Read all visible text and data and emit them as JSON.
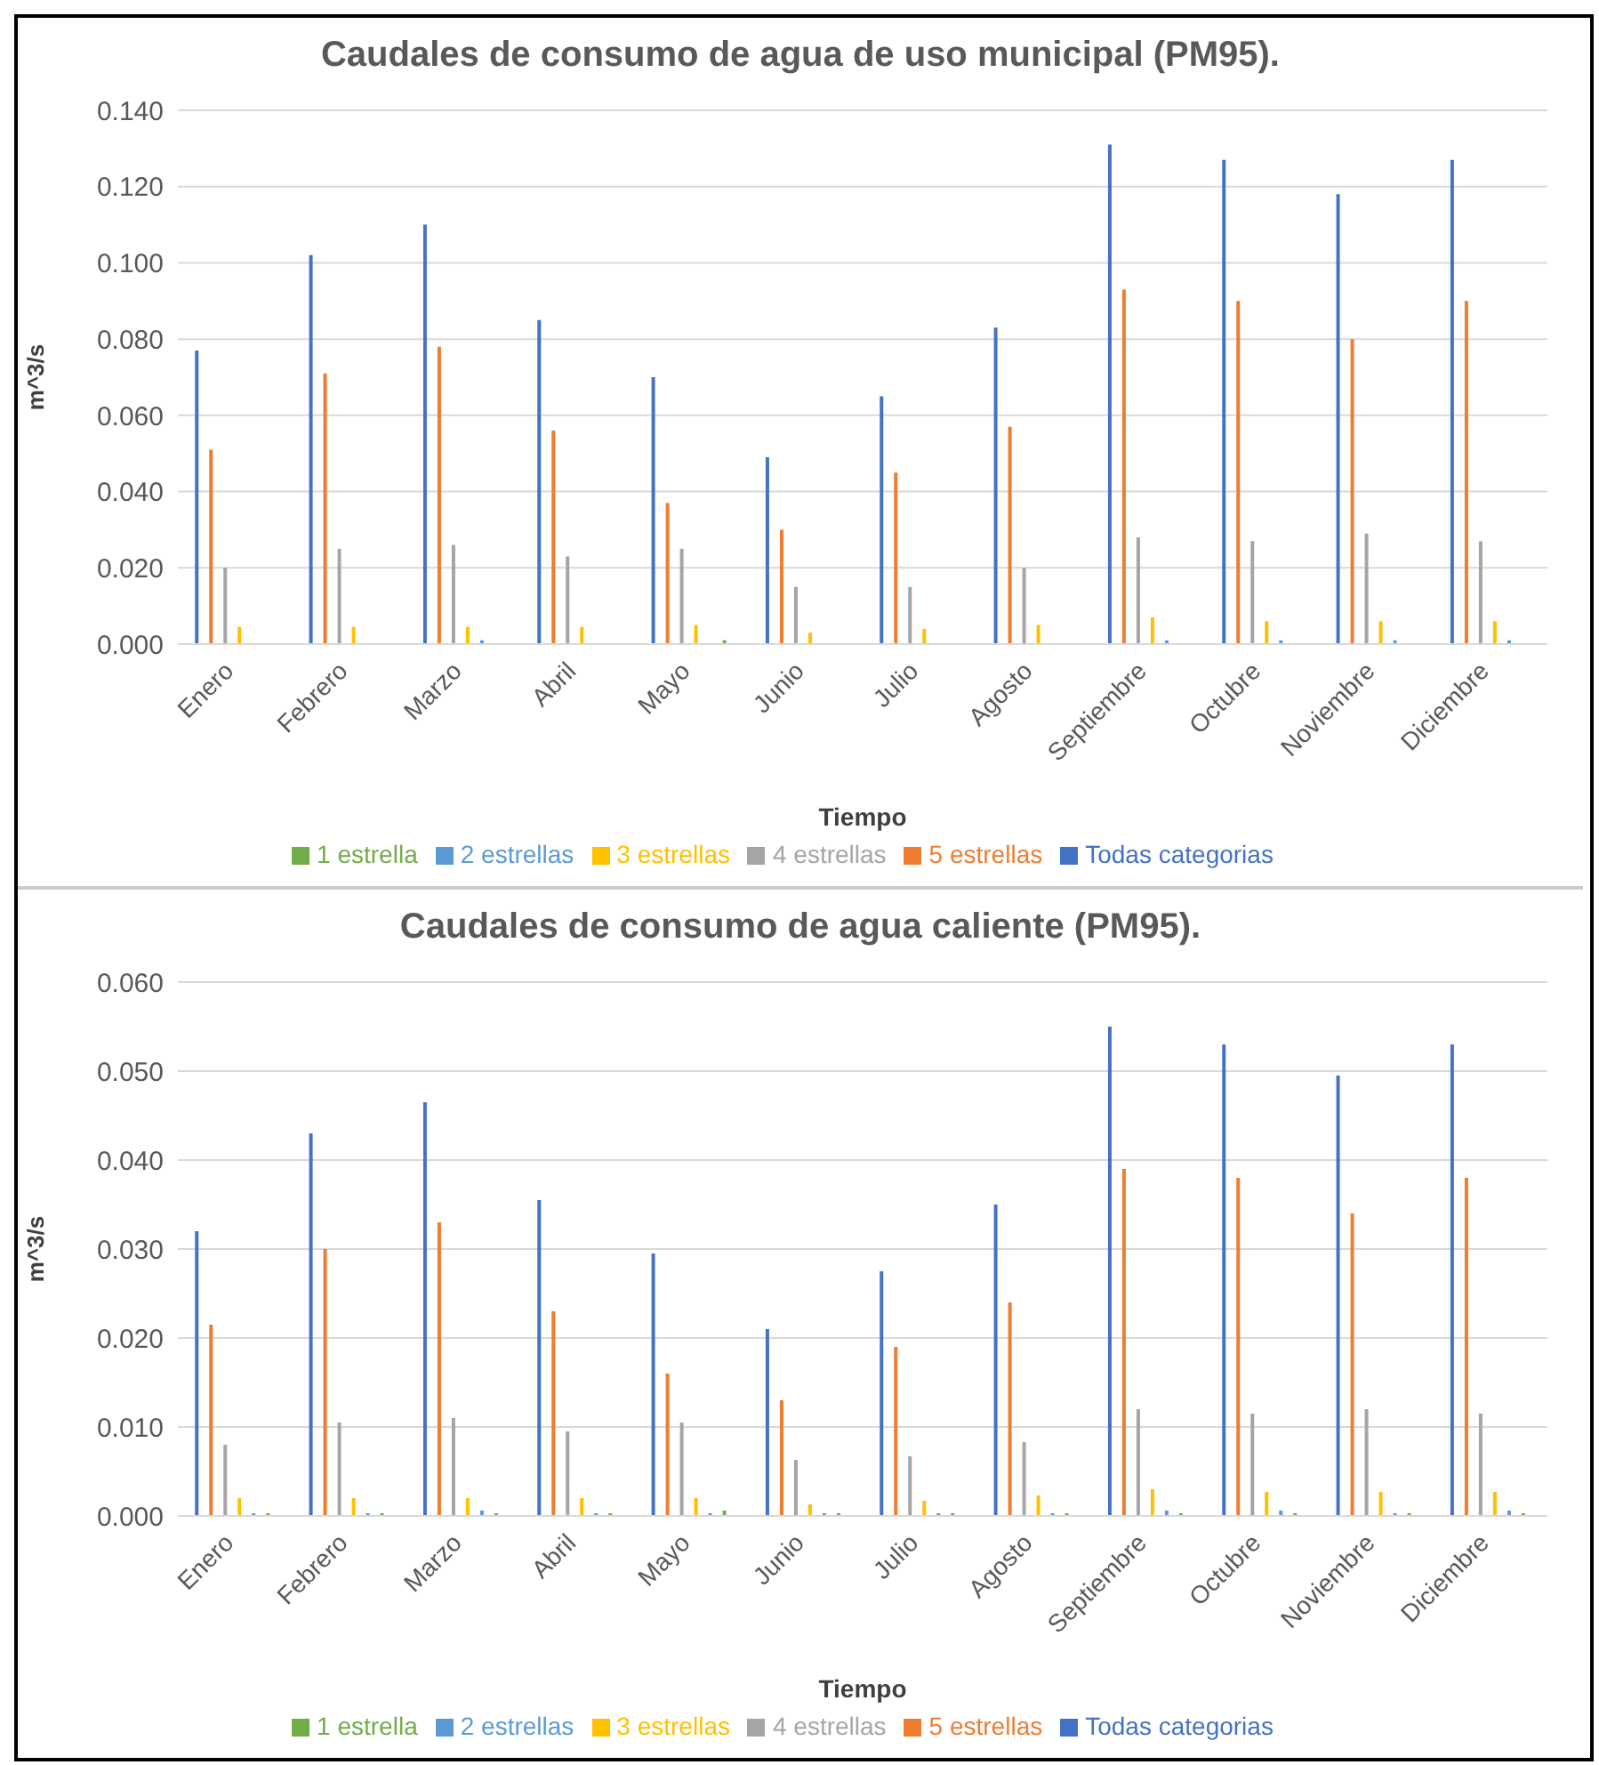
{
  "chart_data": [
    {
      "type": "bar",
      "title": "Caudales de consumo de agua de uso municipal (PM95).",
      "xlabel": "Tiempo",
      "ylabel": "m^3/s",
      "categories": [
        "Enero",
        "Febrero",
        "Marzo",
        "Abril",
        "Mayo",
        "Junio",
        "Julio",
        "Agosto",
        "Septiembre",
        "Octubre",
        "Noviembre",
        "Diciembre"
      ],
      "series": [
        {
          "name": "Todas categorias",
          "color": "#4472c4",
          "values": [
            0.077,
            0.102,
            0.11,
            0.085,
            0.07,
            0.049,
            0.065,
            0.083,
            0.131,
            0.127,
            0.118,
            0.127
          ]
        },
        {
          "name": "5 estrellas",
          "color": "#ed7d31",
          "values": [
            0.051,
            0.071,
            0.078,
            0.056,
            0.037,
            0.03,
            0.045,
            0.057,
            0.093,
            0.09,
            0.08,
            0.09
          ]
        },
        {
          "name": "4 estrellas",
          "color": "#a5a5a5",
          "values": [
            0.02,
            0.025,
            0.026,
            0.023,
            0.025,
            0.015,
            0.015,
            0.02,
            0.028,
            0.027,
            0.029,
            0.027
          ]
        },
        {
          "name": "3 estrellas",
          "color": "#ffc000",
          "values": [
            0.0045,
            0.0045,
            0.0045,
            0.0045,
            0.005,
            0.003,
            0.004,
            0.005,
            0.007,
            0.006,
            0.006,
            0.006
          ]
        },
        {
          "name": "2 estrellas",
          "color": "#5b9bd5",
          "values": [
            0,
            0,
            0.001,
            0,
            0,
            0,
            0,
            0,
            0.001,
            0.001,
            0.001,
            0.001
          ]
        },
        {
          "name": "1 estrella",
          "color": "#70ad47",
          "values": [
            0,
            0,
            0,
            0,
            0.001,
            0,
            0,
            0,
            0,
            0,
            0,
            0
          ]
        }
      ],
      "ylim": [
        0,
        0.14
      ],
      "yticks": [
        {
          "value": 0,
          "label": "0.000"
        },
        {
          "value": 0.02,
          "label": "0.020"
        },
        {
          "value": 0.04,
          "label": "0.040"
        },
        {
          "value": 0.06,
          "label": "0.060"
        },
        {
          "value": 0.08,
          "label": "0.080"
        },
        {
          "value": 0.1,
          "label": "0.100"
        },
        {
          "value": 0.12,
          "label": "0.120"
        },
        {
          "value": 0.14,
          "label": "0.140"
        }
      ],
      "grid": "y",
      "legend": "bottom"
    },
    {
      "type": "bar",
      "title": "Caudales de consumo de agua caliente (PM95).",
      "xlabel": "Tiempo",
      "ylabel": "m^3/s",
      "categories": [
        "Enero",
        "Febrero",
        "Marzo",
        "Abril",
        "Mayo",
        "Junio",
        "Julio",
        "Agosto",
        "Septiembre",
        "Octubre",
        "Noviembre",
        "Diciembre"
      ],
      "series": [
        {
          "name": "Todas categorias",
          "color": "#4472c4",
          "values": [
            0.032,
            0.043,
            0.0465,
            0.0355,
            0.0295,
            0.021,
            0.0275,
            0.035,
            0.055,
            0.053,
            0.0495,
            0.053
          ]
        },
        {
          "name": "5 estrellas",
          "color": "#ed7d31",
          "values": [
            0.0215,
            0.03,
            0.033,
            0.023,
            0.016,
            0.013,
            0.019,
            0.024,
            0.039,
            0.038,
            0.034,
            0.038
          ]
        },
        {
          "name": "4 estrellas",
          "color": "#a5a5a5",
          "values": [
            0.008,
            0.0105,
            0.011,
            0.0095,
            0.0105,
            0.0063,
            0.0067,
            0.0083,
            0.012,
            0.0115,
            0.012,
            0.0115
          ]
        },
        {
          "name": "3 estrellas",
          "color": "#ffc000",
          "values": [
            0.002,
            0.002,
            0.002,
            0.002,
            0.002,
            0.0013,
            0.0017,
            0.0023,
            0.003,
            0.0027,
            0.0027,
            0.0027
          ]
        },
        {
          "name": "2 estrellas",
          "color": "#5b9bd5",
          "values": [
            0.0003,
            0.0003,
            0.0006,
            0.0003,
            0.0003,
            0.0003,
            0.0003,
            0.0003,
            0.0006,
            0.0006,
            0.0003,
            0.0006
          ]
        },
        {
          "name": "1 estrella",
          "color": "#70ad47",
          "values": [
            0.0003,
            0.0003,
            0.0003,
            0.0003,
            0.0006,
            0.0003,
            0.0003,
            0.0003,
            0.0003,
            0.0003,
            0.0003,
            0.0003
          ]
        }
      ],
      "ylim": [
        0,
        0.06
      ],
      "yticks": [
        {
          "value": 0,
          "label": "0.000"
        },
        {
          "value": 0.01,
          "label": "0.010"
        },
        {
          "value": 0.02,
          "label": "0.020"
        },
        {
          "value": 0.03,
          "label": "0.030"
        },
        {
          "value": 0.04,
          "label": "0.040"
        },
        {
          "value": 0.05,
          "label": "0.050"
        },
        {
          "value": 0.06,
          "label": "0.060"
        }
      ],
      "grid": "y",
      "legend": "bottom"
    }
  ]
}
